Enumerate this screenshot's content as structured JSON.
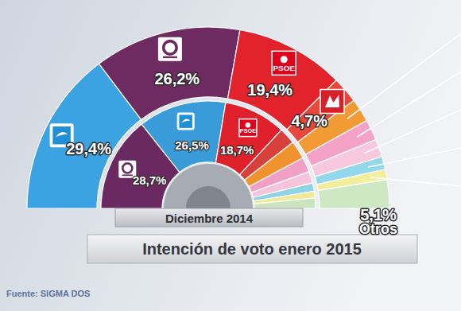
{
  "chart_data": [
    {
      "type": "semidonut",
      "title": "Intención de voto enero 2015",
      "annotation": "Fuente: SIGMA DOS",
      "categories": [
        null,
        null,
        "PSOE",
        null,
        null,
        null,
        null,
        null,
        null,
        "Otros"
      ],
      "values": [
        29.4,
        26.2,
        19.4,
        4.7,
        4.2,
        3.7,
        3.2,
        2.3,
        1.8,
        5.1
      ],
      "value_labels": [
        "29,4%",
        "26,2%",
        "19,4%",
        "4,7%",
        null,
        null,
        null,
        null,
        null,
        "5,1%"
      ],
      "colors": [
        "#3ba3e2",
        "#6e2b62",
        "#e3232b",
        "#e9473b",
        "#f29a33",
        "#f4a3c7",
        "#f8c9de",
        "#92d8ea",
        "#f1ee9c",
        "#cfe8c4"
      ],
      "data_labels": true
    },
    {
      "type": "semidonut",
      "title": "Diciembre 2014",
      "categories": [
        null,
        null,
        "PSOE",
        null,
        null,
        null,
        null,
        null,
        null,
        null
      ],
      "values": [
        28.7,
        26.5,
        18.7,
        5.0,
        5.5,
        4.5,
        3.5,
        2.5,
        2.0,
        3.1
      ],
      "value_labels": [
        "28,7%",
        "26,5%",
        "18,7%",
        null,
        null,
        null,
        null,
        null,
        null,
        null
      ],
      "colors": [
        "#6a2960",
        "#3a9bd9",
        "#e0202a",
        "#d8403c",
        "#f0922e",
        "#f29fc5",
        "#f6c4da",
        "#8ed3e6",
        "#efeb95",
        "#c9e4bf"
      ],
      "data_labels": true
    }
  ]
}
